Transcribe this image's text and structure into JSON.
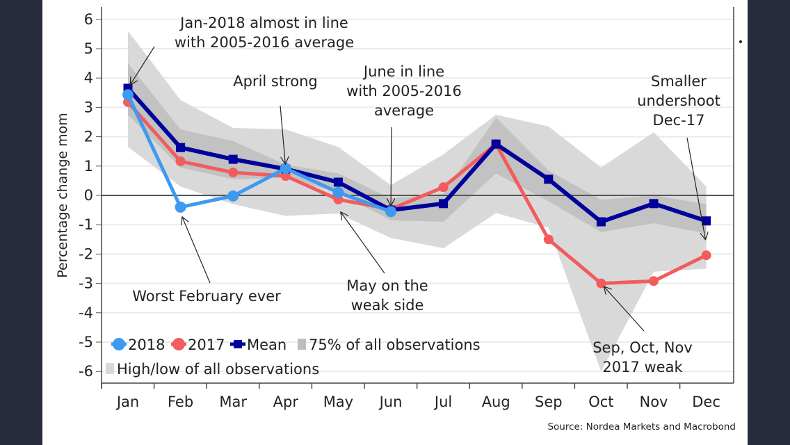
{
  "chart_data": {
    "type": "line",
    "title": "",
    "xlabel": "",
    "ylabel": "Percentage change mom",
    "ylim": [
      -6,
      6
    ],
    "yticks": [
      6,
      5,
      4,
      3,
      2,
      1,
      0,
      -1,
      -2,
      -3,
      -4,
      -5,
      -6
    ],
    "categories": [
      "Jan",
      "Feb",
      "Mar",
      "Apr",
      "May",
      "Jun",
      "Jul",
      "Aug",
      "Sep",
      "Oct",
      "Nov",
      "Dec"
    ],
    "grid": true,
    "series": [
      {
        "name": "2018",
        "color": "#3d9af0",
        "marker": "circle",
        "values": [
          3.43,
          -0.4,
          -0.02,
          0.92,
          0.1,
          -0.55,
          null,
          null,
          null,
          null,
          null,
          null
        ]
      },
      {
        "name": "2017",
        "color": "#f25c5c",
        "marker": "circle",
        "values": [
          3.18,
          1.16,
          0.78,
          0.66,
          -0.14,
          -0.47,
          0.28,
          1.75,
          -1.5,
          -3.0,
          -2.92,
          -2.04
        ]
      },
      {
        "name": "Mean",
        "color": "#00009b",
        "marker": "square",
        "values": [
          3.65,
          1.63,
          1.23,
          0.9,
          0.45,
          -0.5,
          -0.28,
          1.75,
          0.55,
          -0.9,
          -0.28,
          -0.87
        ]
      }
    ],
    "bands": [
      {
        "name": "High/low of all observations",
        "color": "#d9d9d9",
        "upper": [
          5.6,
          3.25,
          2.3,
          2.25,
          1.65,
          0.35,
          1.4,
          2.75,
          2.35,
          0.95,
          2.15,
          0.3
        ],
        "lower": [
          1.65,
          0.3,
          -0.3,
          -0.7,
          -0.62,
          -1.45,
          -1.8,
          -0.6,
          -1.1,
          -6.0,
          -2.6,
          -2.5
        ]
      },
      {
        "name": "75% of all observations",
        "color": "#bdbdbd",
        "upper": [
          4.5,
          2.25,
          1.85,
          1.05,
          0.75,
          -0.1,
          0.05,
          2.65,
          0.85,
          -0.15,
          0.0,
          -0.3
        ],
        "lower": [
          2.75,
          0.95,
          0.55,
          0.6,
          0.1,
          -0.85,
          -0.9,
          0.75,
          -0.2,
          -1.25,
          -0.95,
          -1.3
        ]
      }
    ],
    "legend": {
      "placement": "bottom-left",
      "items": [
        {
          "label": "2018",
          "kind": "line-circle",
          "color": "#3d9af0"
        },
        {
          "label": "2017",
          "kind": "line-circle",
          "color": "#f25c5c"
        },
        {
          "label": "Mean",
          "kind": "line-square",
          "color": "#00009b"
        },
        {
          "label": "75% of all observations",
          "kind": "patch",
          "color": "#bdbdbd"
        },
        {
          "label": "High/low of all observations",
          "kind": "patch",
          "color": "#d9d9d9"
        }
      ]
    },
    "annotations": [
      {
        "id": "jan",
        "lines": [
          "Jan-2018 almost in line",
          "with 2005-2016 average"
        ],
        "target": {
          "month": "Jan",
          "value": 3.65
        }
      },
      {
        "id": "apr",
        "lines": [
          "April strong"
        ],
        "target": {
          "month": "Apr",
          "value": 0.92
        }
      },
      {
        "id": "jun",
        "lines": [
          "June in line",
          "with 2005-2016",
          "average"
        ],
        "target": {
          "month": "Jun",
          "value": -0.5
        }
      },
      {
        "id": "dec",
        "lines": [
          "Smaller",
          "undershoot",
          "Dec-17"
        ],
        "target": {
          "month": "Dec",
          "value": -1.65
        }
      },
      {
        "id": "feb",
        "lines": [
          "Worst February ever"
        ],
        "target": {
          "month": "Feb",
          "value": -0.6
        }
      },
      {
        "id": "may",
        "lines": [
          "May on the",
          "weak side"
        ],
        "target": {
          "month": "May",
          "value": -0.45
        }
      },
      {
        "id": "sep",
        "lines": [
          "Sep, Oct, Nov",
          "2017 weak"
        ],
        "target": {
          "month": "Oct",
          "value": -3.0
        }
      }
    ],
    "source": "Source: Nordea Markets and Macrobond"
  }
}
